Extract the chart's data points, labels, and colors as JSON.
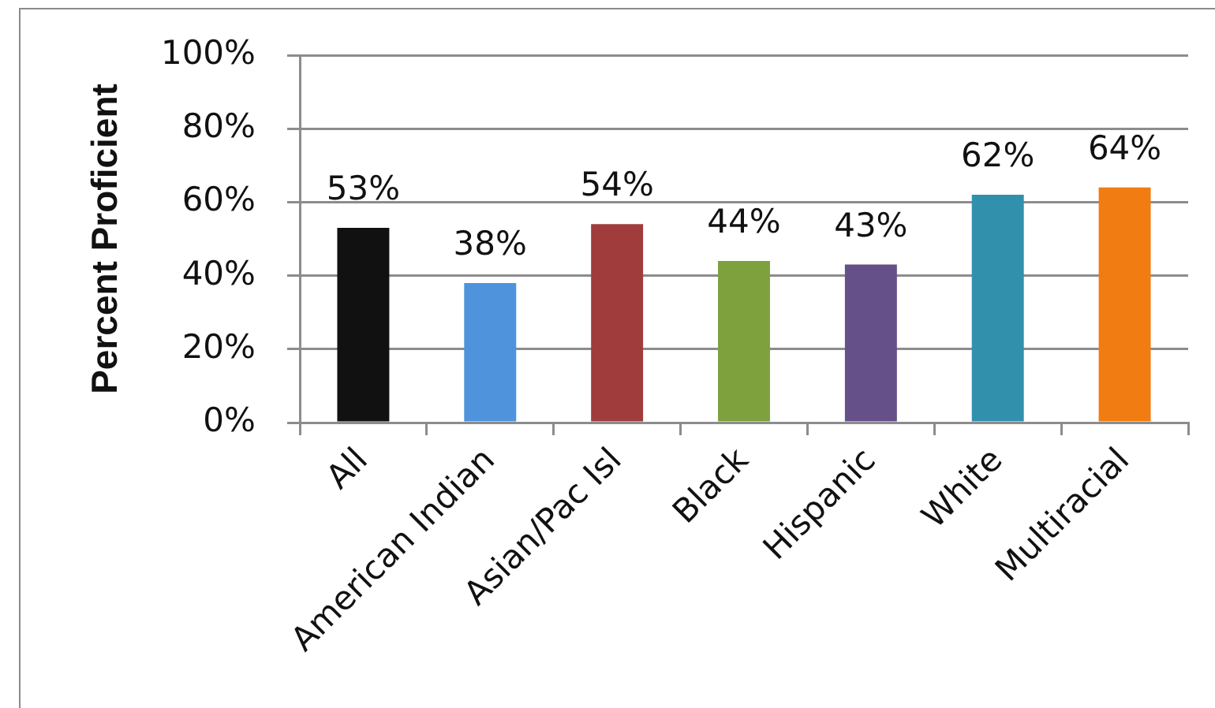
{
  "chart_data": {
    "type": "bar",
    "ylabel": "Percent Proficient",
    "categories": [
      "All",
      "American Indian",
      "Asian/Pac Isl",
      "Black",
      "Hispanic",
      "White",
      "Multiracial"
    ],
    "values": [
      53,
      38,
      54,
      44,
      43,
      62,
      64
    ],
    "colors": [
      "#111111",
      "#4f93dd",
      "#a13c3c",
      "#7ea13e",
      "#66508a",
      "#3191ad",
      "#f07c12"
    ],
    "value_labels": [
      "53%",
      "38%",
      "54%",
      "44%",
      "43%",
      "62%",
      "64%"
    ],
    "ylim": [
      0,
      100
    ],
    "yticks": [
      {
        "value": 0,
        "label": "0%"
      },
      {
        "value": 20,
        "label": "20%"
      },
      {
        "value": 40,
        "label": "40%"
      },
      {
        "value": 60,
        "label": "60%"
      },
      {
        "value": 80,
        "label": "80%"
      },
      {
        "value": 100,
        "label": "100%"
      }
    ],
    "grid": "y"
  }
}
